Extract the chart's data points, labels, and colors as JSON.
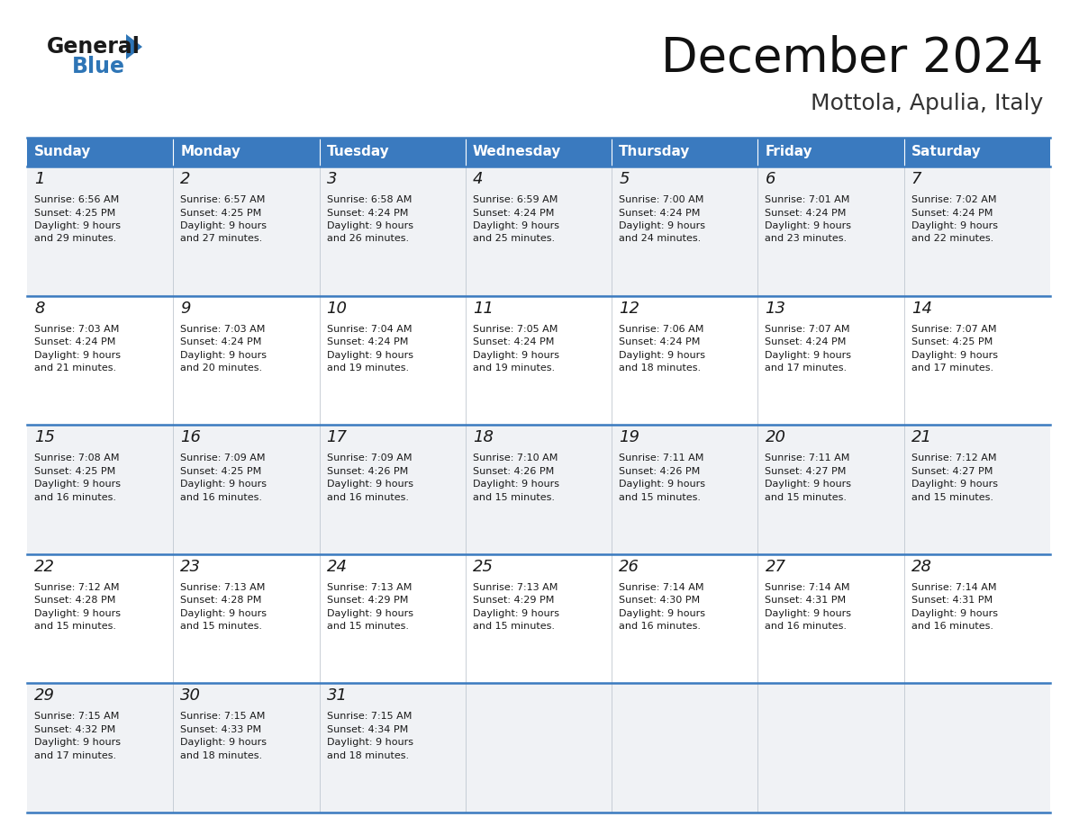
{
  "title": "December 2024",
  "subtitle": "Mottola, Apulia, Italy",
  "header_color": "#3a7abf",
  "header_text_color": "#ffffff",
  "grid_line_color": "#3a7abf",
  "day_headers": [
    "Sunday",
    "Monday",
    "Tuesday",
    "Wednesday",
    "Thursday",
    "Friday",
    "Saturday"
  ],
  "weeks": [
    [
      {
        "day": "1",
        "sunrise": "6:56 AM",
        "sunset": "4:25 PM",
        "daylight_min": "29"
      },
      {
        "day": "2",
        "sunrise": "6:57 AM",
        "sunset": "4:25 PM",
        "daylight_min": "27"
      },
      {
        "day": "3",
        "sunrise": "6:58 AM",
        "sunset": "4:24 PM",
        "daylight_min": "26"
      },
      {
        "day": "4",
        "sunrise": "6:59 AM",
        "sunset": "4:24 PM",
        "daylight_min": "25"
      },
      {
        "day": "5",
        "sunrise": "7:00 AM",
        "sunset": "4:24 PM",
        "daylight_min": "24"
      },
      {
        "day": "6",
        "sunrise": "7:01 AM",
        "sunset": "4:24 PM",
        "daylight_min": "23"
      },
      {
        "day": "7",
        "sunrise": "7:02 AM",
        "sunset": "4:24 PM",
        "daylight_min": "22"
      }
    ],
    [
      {
        "day": "8",
        "sunrise": "7:03 AM",
        "sunset": "4:24 PM",
        "daylight_min": "21"
      },
      {
        "day": "9",
        "sunrise": "7:03 AM",
        "sunset": "4:24 PM",
        "daylight_min": "20"
      },
      {
        "day": "10",
        "sunrise": "7:04 AM",
        "sunset": "4:24 PM",
        "daylight_min": "19"
      },
      {
        "day": "11",
        "sunrise": "7:05 AM",
        "sunset": "4:24 PM",
        "daylight_min": "19"
      },
      {
        "day": "12",
        "sunrise": "7:06 AM",
        "sunset": "4:24 PM",
        "daylight_min": "18"
      },
      {
        "day": "13",
        "sunrise": "7:07 AM",
        "sunset": "4:24 PM",
        "daylight_min": "17"
      },
      {
        "day": "14",
        "sunrise": "7:07 AM",
        "sunset": "4:25 PM",
        "daylight_min": "17"
      }
    ],
    [
      {
        "day": "15",
        "sunrise": "7:08 AM",
        "sunset": "4:25 PM",
        "daylight_min": "16"
      },
      {
        "day": "16",
        "sunrise": "7:09 AM",
        "sunset": "4:25 PM",
        "daylight_min": "16"
      },
      {
        "day": "17",
        "sunrise": "7:09 AM",
        "sunset": "4:26 PM",
        "daylight_min": "16"
      },
      {
        "day": "18",
        "sunrise": "7:10 AM",
        "sunset": "4:26 PM",
        "daylight_min": "15"
      },
      {
        "day": "19",
        "sunrise": "7:11 AM",
        "sunset": "4:26 PM",
        "daylight_min": "15"
      },
      {
        "day": "20",
        "sunrise": "7:11 AM",
        "sunset": "4:27 PM",
        "daylight_min": "15"
      },
      {
        "day": "21",
        "sunrise": "7:12 AM",
        "sunset": "4:27 PM",
        "daylight_min": "15"
      }
    ],
    [
      {
        "day": "22",
        "sunrise": "7:12 AM",
        "sunset": "4:28 PM",
        "daylight_min": "15"
      },
      {
        "day": "23",
        "sunrise": "7:13 AM",
        "sunset": "4:28 PM",
        "daylight_min": "15"
      },
      {
        "day": "24",
        "sunrise": "7:13 AM",
        "sunset": "4:29 PM",
        "daylight_min": "15"
      },
      {
        "day": "25",
        "sunrise": "7:13 AM",
        "sunset": "4:29 PM",
        "daylight_min": "15"
      },
      {
        "day": "26",
        "sunrise": "7:14 AM",
        "sunset": "4:30 PM",
        "daylight_min": "16"
      },
      {
        "day": "27",
        "sunrise": "7:14 AM",
        "sunset": "4:31 PM",
        "daylight_min": "16"
      },
      {
        "day": "28",
        "sunrise": "7:14 AM",
        "sunset": "4:31 PM",
        "daylight_min": "16"
      }
    ],
    [
      {
        "day": "29",
        "sunrise": "7:15 AM",
        "sunset": "4:32 PM",
        "daylight_min": "17"
      },
      {
        "day": "30",
        "sunrise": "7:15 AM",
        "sunset": "4:33 PM",
        "daylight_min": "18"
      },
      {
        "day": "31",
        "sunrise": "7:15 AM",
        "sunset": "4:34 PM",
        "daylight_min": "18"
      },
      null,
      null,
      null,
      null
    ]
  ],
  "logo_color_general": "#1a1a1a",
  "logo_color_blue": "#2e75b6",
  "logo_triangle_color": "#2e75b6"
}
